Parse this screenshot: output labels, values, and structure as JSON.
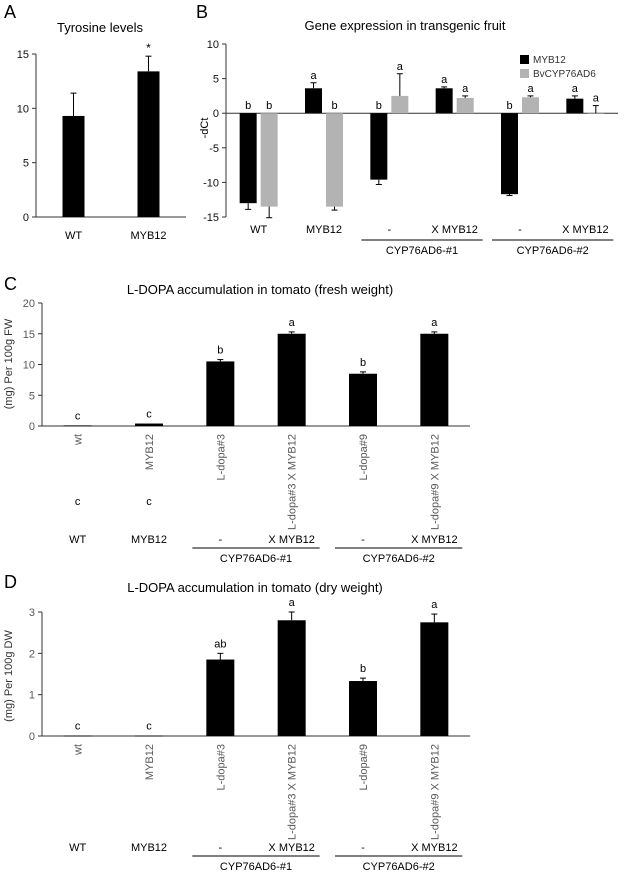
{
  "colors": {
    "black_bar": "#000000",
    "grey_bar": "#b3b3b3",
    "axis": "#333333",
    "text": "#111111",
    "tick_text": "#595959"
  },
  "panels": {
    "a": {
      "letter": "A"
    },
    "b": {
      "letter": "B"
    },
    "c": {
      "letter": "C"
    },
    "d": {
      "letter": "D"
    }
  },
  "chart_data": [
    {
      "id": "a",
      "type": "bar",
      "title": "Tyrosine levels",
      "categories": [
        "WT",
        "MYB12"
      ],
      "values": [
        9.3,
        13.4
      ],
      "errors": [
        2.1,
        1.4
      ],
      "sig": [
        "",
        "*"
      ],
      "ylim": [
        0,
        15
      ],
      "yticks": [
        "0",
        "5",
        "10",
        "15"
      ],
      "xlabel": "",
      "ylabel": ""
    },
    {
      "id": "b",
      "type": "bar",
      "title": "Gene expression in transgenic fruit",
      "ylabel": "-dCt",
      "ylim": [
        -15,
        10
      ],
      "yticks": [
        "-15",
        "-10",
        "-5",
        "0",
        "5",
        "10"
      ],
      "categories": [
        "WT",
        "MYB12",
        "-",
        "X MYB12",
        "-",
        "X MYB12"
      ],
      "groups": [
        {
          "label": "CYP76AD6-#1",
          "start": 2,
          "end": 3
        },
        {
          "label": "CYP76AD6-#2",
          "start": 4,
          "end": 5
        }
      ],
      "legend_position": "top-right",
      "series": [
        {
          "name": "MYB12",
          "color": "#000000",
          "values": [
            -13.0,
            3.6,
            -9.6,
            3.6,
            -11.7,
            2.1
          ],
          "errors": [
            0.9,
            0.8,
            0.7,
            0.2,
            0.2,
            0.4
          ],
          "letters": [
            "b",
            "a",
            "b",
            "a",
            "b",
            "a"
          ]
        },
        {
          "name": "BvCYP76AD6",
          "color": "#b3b3b3",
          "values": [
            -13.5,
            -13.5,
            2.5,
            2.2,
            2.3,
            0.0
          ],
          "errors": [
            1.6,
            0.5,
            3.2,
            0.3,
            0.2,
            1.1
          ],
          "letters": [
            "b",
            "b",
            "a",
            "a",
            "a",
            "a"
          ]
        }
      ]
    },
    {
      "id": "c",
      "type": "bar",
      "title": "L-DOPA accumulation in tomato (fresh weight)",
      "ylabel": "(mg) Per 100g FW",
      "ylim": [
        0,
        20
      ],
      "yticks": [
        "0",
        "5",
        "10",
        "15",
        "20"
      ],
      "tick_labels": [
        "wt",
        "MYB12",
        "L-dopa#3",
        "L-dopa#3 X MYB12",
        "L-dopa#9",
        "L-dopa#9 X MYB12"
      ],
      "values": [
        0.1,
        0.4,
        10.5,
        15.0,
        8.5,
        15.0
      ],
      "errors": [
        0,
        0,
        0.3,
        0.3,
        0.3,
        0.3
      ],
      "letters": [
        "c",
        "c",
        "b",
        "a",
        "b",
        "a"
      ],
      "extra_letters": [
        "c",
        "c"
      ],
      "categories": [
        "WT",
        "MYB12",
        "-",
        "X MYB12",
        "-",
        "X MYB12"
      ],
      "groups": [
        {
          "label": "CYP76AD6-#1",
          "start": 2,
          "end": 3
        },
        {
          "label": "CYP76AD6-#2",
          "start": 4,
          "end": 5
        }
      ]
    },
    {
      "id": "d",
      "type": "bar",
      "title": "L-DOPA accumulation in tomato (dry weight)",
      "ylabel": "(mg) Per 100g DW",
      "ylim": [
        0,
        3
      ],
      "yticks": [
        "0",
        "1",
        "2",
        "3"
      ],
      "tick_labels": [
        "wt",
        "MYB12",
        "L-dopa#3",
        "L-dopa#3 X MYB12",
        "L-dopa#9",
        "L-dopa#9 X MYB12"
      ],
      "values": [
        0.01,
        0.01,
        1.85,
        2.8,
        1.33,
        2.75
      ],
      "errors": [
        0,
        0,
        0.15,
        0.2,
        0.07,
        0.2
      ],
      "letters": [
        "c",
        "c",
        "ab",
        "a",
        "b",
        "a"
      ],
      "categories": [
        "WT",
        "MYB12",
        "-",
        "X MYB12",
        "-",
        "X MYB12"
      ],
      "groups": [
        {
          "label": "CYP76AD6-#1",
          "start": 2,
          "end": 3
        },
        {
          "label": "CYP76AD6-#2",
          "start": 4,
          "end": 5
        }
      ]
    }
  ]
}
